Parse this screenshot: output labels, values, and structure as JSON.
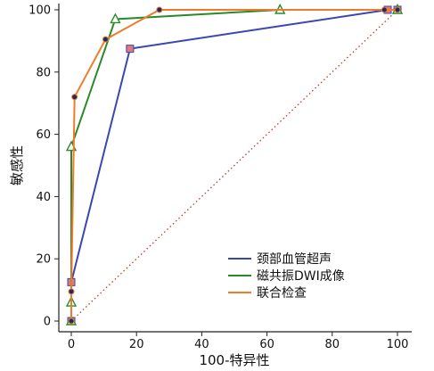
{
  "chart_data": {
    "type": "line",
    "xlabel": "100-特异性",
    "ylabel": "敏感性",
    "xlim": [
      0,
      100
    ],
    "ylim": [
      0,
      100
    ],
    "x_ticks": [
      "0",
      "20",
      "40",
      "60",
      "80",
      "100"
    ],
    "y_ticks": [
      "0",
      "20",
      "40",
      "60",
      "80",
      "100"
    ],
    "reference_line": {
      "style": "dotted",
      "color": "#c0392b",
      "from": [
        0,
        0
      ],
      "to": [
        100,
        100
      ]
    },
    "legend_position": "bottom-right",
    "series": [
      {
        "name": "颈部血管超声",
        "color": "#3a47b0",
        "marker": "square",
        "marker_fill": "#e07a7a",
        "points": [
          [
            0,
            0
          ],
          [
            0,
            12.5
          ],
          [
            18,
            87.5
          ],
          [
            97,
            100
          ],
          [
            100,
            100
          ]
        ]
      },
      {
        "name": "磁共振DWI成像",
        "color": "#2a8a2a",
        "marker": "triangle",
        "marker_fill": "#ffffff",
        "points": [
          [
            0,
            0
          ],
          [
            0,
            6
          ],
          [
            0,
            56
          ],
          [
            13.5,
            97
          ],
          [
            64,
            100
          ],
          [
            100,
            100
          ]
        ]
      },
      {
        "name": "联合检查",
        "color": "#f07a2a",
        "marker": "dot",
        "marker_fill": "#1f2a6b",
        "points": [
          [
            0,
            0
          ],
          [
            0,
            9.5
          ],
          [
            1,
            72
          ],
          [
            10.5,
            90.5
          ],
          [
            27,
            100
          ],
          [
            96,
            100
          ],
          [
            100,
            100
          ]
        ]
      }
    ]
  }
}
